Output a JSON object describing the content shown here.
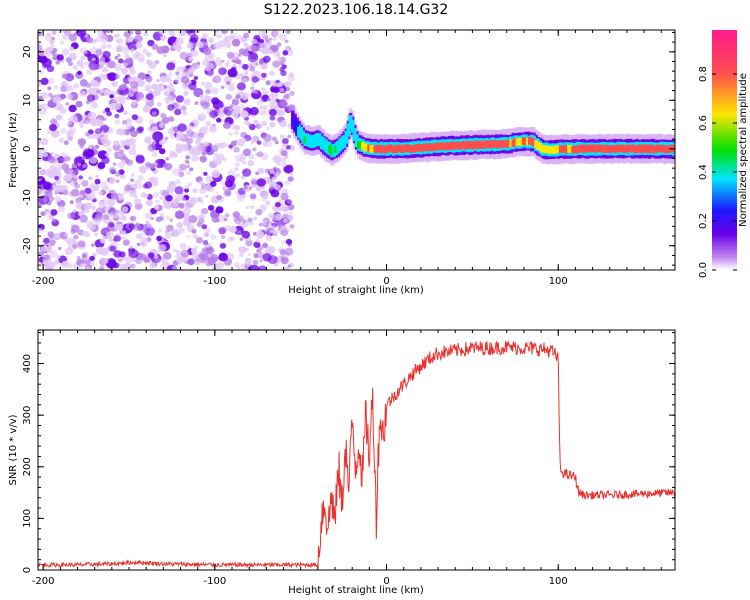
{
  "title": "S122.2023.106.18.14.G32",
  "colors": {
    "snr_line": "#e8322e",
    "colormap": [
      "#ffffff",
      "#c58cf2",
      "#6a00e8",
      "#1a1aff",
      "#00e5ff",
      "#00e000",
      "#ffe600",
      "#ff4d4d",
      "#ff1a8c"
    ]
  },
  "chart_data": [
    {
      "type": "heatmap",
      "name": "spectrogram",
      "title": "",
      "xlabel": "Height of straight line (km)",
      "ylabel": "Frequency (Hz)",
      "xlim": [
        -203,
        168
      ],
      "ylim": [
        -25,
        24.5
      ],
      "x_ticks": [
        -200,
        -100,
        0,
        100
      ],
      "y_ticks": [
        -20,
        -10,
        0,
        10,
        20
      ],
      "noise_region": {
        "x_from": -203,
        "x_to": -55,
        "description": "random low-amplitude noise spanning all frequencies"
      },
      "ridge": {
        "x": [
          -55,
          -52,
          -48,
          -44,
          -40,
          -36,
          -32,
          -28,
          -24,
          -21,
          -19,
          -17,
          -14,
          -10,
          -5,
          0,
          10,
          30,
          50,
          70,
          78,
          85,
          90,
          95,
          110,
          130,
          150,
          168
        ],
        "frequency_hz": [
          6,
          4,
          2,
          1.5,
          2,
          0.5,
          -0.5,
          0.5,
          2,
          6,
          3,
          1,
          0.5,
          0,
          0,
          0,
          0,
          0.5,
          0.8,
          1,
          1.5,
          1.5,
          0,
          -0.2,
          0,
          0,
          0,
          0
        ],
        "amplitude": [
          0.3,
          0.45,
          0.55,
          0.5,
          0.45,
          0.5,
          0.6,
          0.55,
          0.5,
          0.45,
          0.5,
          0.6,
          0.7,
          0.8,
          0.85,
          0.9,
          0.9,
          0.85,
          0.9,
          0.85,
          0.8,
          0.85,
          0.75,
          0.8,
          0.85,
          0.85,
          0.9,
          0.9
        ]
      },
      "colorbar": {
        "label": "Normalized spectral amplitude",
        "range": [
          0,
          0.98
        ],
        "ticks": [
          "0.0",
          "0.2",
          "0.4",
          "0.6",
          "0.8"
        ]
      }
    },
    {
      "type": "line",
      "name": "snr",
      "title": "",
      "xlabel": "Height of straight line (km)",
      "ylabel": "SNR (10 * v/v)",
      "xlim": [
        -203,
        168
      ],
      "ylim": [
        0,
        465
      ],
      "x_ticks": [
        -200,
        -100,
        0,
        100
      ],
      "y_ticks": [
        0,
        100,
        200,
        300,
        400
      ],
      "series": [
        {
          "x": [
            -203,
            -180,
            -160,
            -145,
            -130,
            -100,
            -80,
            -60,
            -40,
            -38,
            -36,
            -34,
            -32,
            -30,
            -28,
            -26,
            -24,
            -22,
            -20,
            -18,
            -16,
            -14,
            -12,
            -10,
            -8,
            -6,
            -4,
            -2,
            0,
            5,
            10,
            15,
            20,
            25,
            30,
            40,
            50,
            60,
            70,
            80,
            90,
            96,
            100,
            101,
            102,
            105,
            110,
            112,
            115,
            130,
            150,
            168
          ],
          "y": [
            10,
            10,
            12,
            15,
            12,
            10,
            10,
            10,
            10,
            100,
            130,
            80,
            150,
            90,
            200,
            120,
            250,
            150,
            290,
            200,
            250,
            180,
            300,
            220,
            340,
            100,
            300,
            260,
            320,
            340,
            360,
            380,
            395,
            410,
            420,
            425,
            430,
            430,
            432,
            430,
            428,
            425,
            410,
            200,
            190,
            185,
            180,
            150,
            145,
            145,
            148,
            150
          ]
        }
      ]
    }
  ]
}
